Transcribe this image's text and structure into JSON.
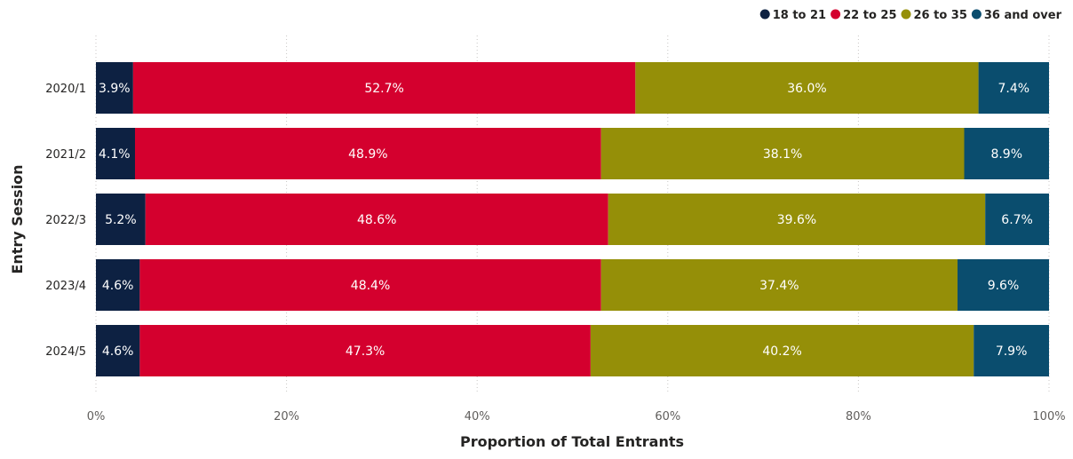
{
  "chart_data": {
    "type": "bar",
    "orientation": "horizontal",
    "stacked": true,
    "categories": [
      "2020/1",
      "2021/2",
      "2022/3",
      "2023/4",
      "2024/5"
    ],
    "series": [
      {
        "name": "18 to 21",
        "color": "#0d2142",
        "values": [
          3.9,
          4.1,
          5.2,
          4.6,
          4.6
        ],
        "labels": [
          "3.9%",
          "4.1%",
          "5.2%",
          "4.6%",
          "4.6%"
        ]
      },
      {
        "name": "22 to 25",
        "color": "#d4002e",
        "values": [
          52.7,
          48.9,
          48.6,
          48.4,
          47.3
        ],
        "labels": [
          "52.7%",
          "48.9%",
          "48.6%",
          "48.4%",
          "47.3%"
        ]
      },
      {
        "name": "26 to 35",
        "color": "#958f08",
        "values": [
          36.0,
          38.1,
          39.6,
          37.4,
          40.2
        ],
        "labels": [
          "36.0%",
          "38.1%",
          "39.6%",
          "37.4%",
          "40.2%"
        ]
      },
      {
        "name": "36 and over",
        "color": "#0a4d6e",
        "values": [
          7.4,
          8.9,
          6.7,
          9.6,
          7.9
        ],
        "labels": [
          "7.4%",
          "8.9%",
          "6.7%",
          "9.6%",
          "7.9%"
        ]
      }
    ],
    "xlim": [
      0,
      100
    ],
    "xticks": [
      0,
      20,
      40,
      60,
      80,
      100
    ],
    "xtick_labels": [
      "0%",
      "20%",
      "40%",
      "60%",
      "80%",
      "100%"
    ],
    "xlabel": "Proportion of Total Entrants",
    "ylabel": "Entry Session",
    "grid": "vertical dotted",
    "legend_position": "top-right"
  }
}
